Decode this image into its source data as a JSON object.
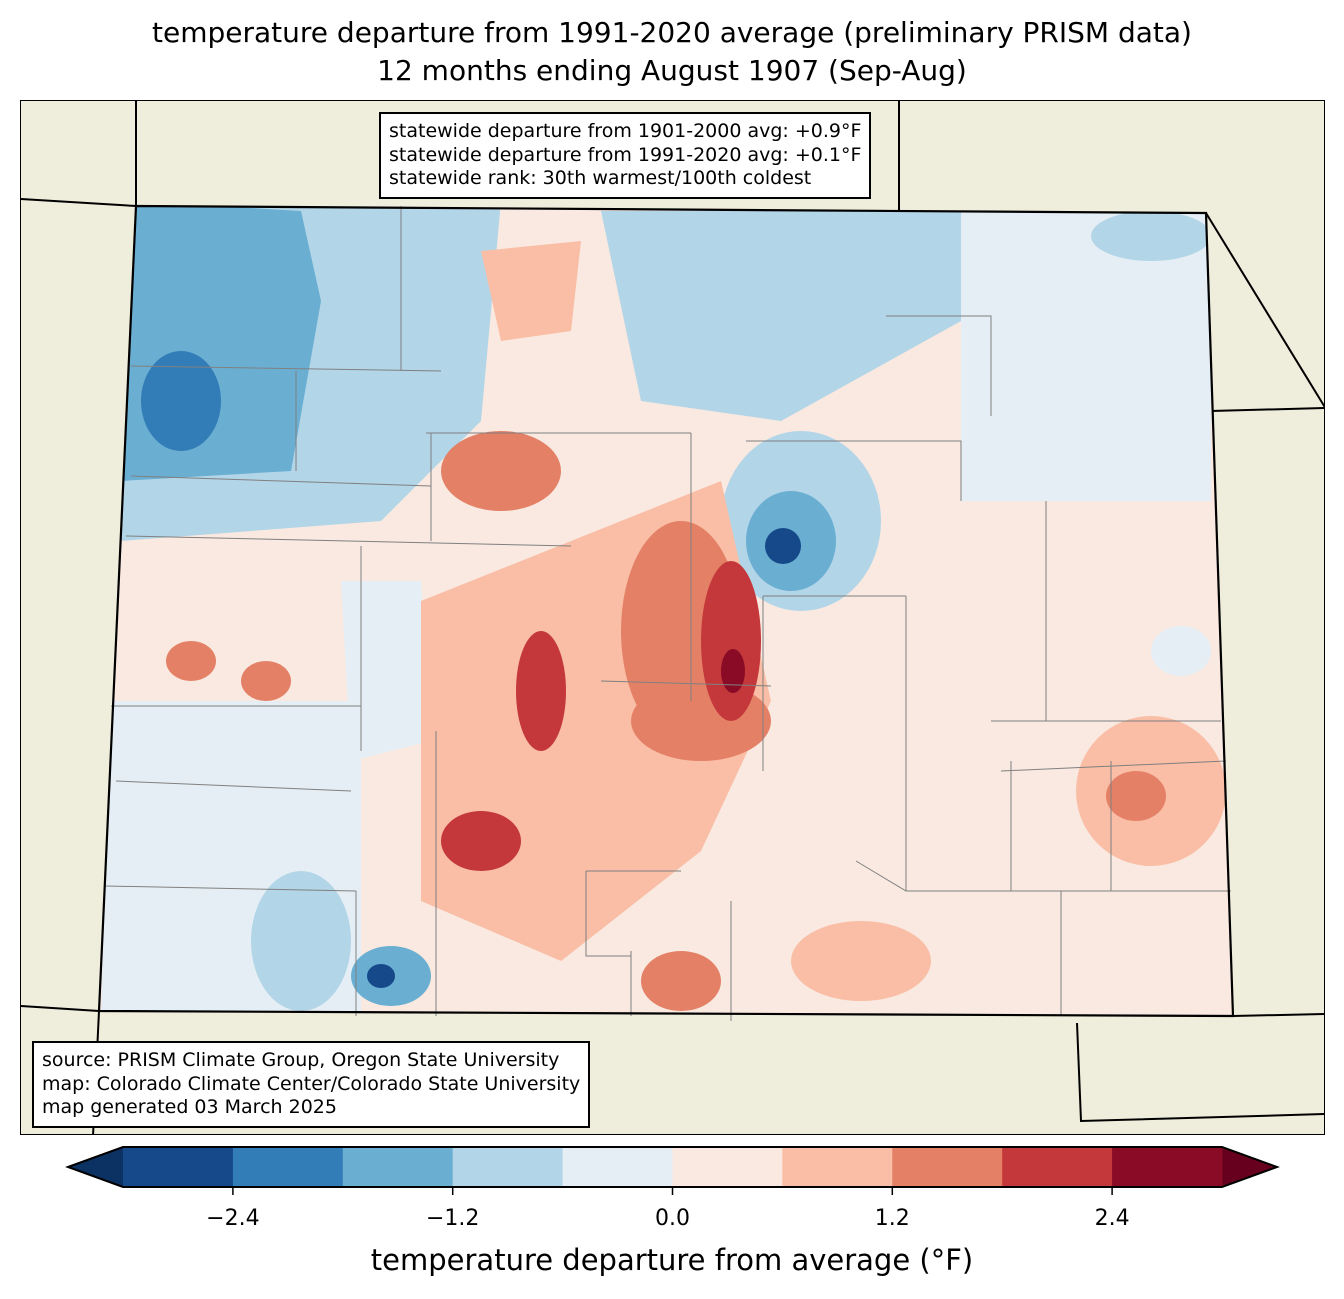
{
  "title": {
    "line1": "temperature departure from 1991-2020 average (preliminary PRISM data)",
    "line2": "12 months ending August 1907 (Sep-Aug)"
  },
  "stats_box": {
    "line1": "statewide departure from 1901-2000 avg: +0.9°F",
    "line2": "statewide departure from 1991-2020 avg: +0.1°F",
    "line3": "statewide rank: 30th warmest/100th coldest"
  },
  "source_box": {
    "line1": "source: PRISM Climate Group, Oregon State University",
    "line2": "map: Colorado Climate Center/Colorado State University",
    "line3": "map generated 03 March 2025"
  },
  "colorbar": {
    "label": "temperature departure from average (°F)",
    "levels": [
      -3.0,
      -2.4,
      -1.8,
      -1.2,
      -0.6,
      0.0,
      0.6,
      1.2,
      1.8,
      2.4,
      3.0
    ],
    "colors": [
      "#15498a",
      "#327db7",
      "#6aaed2",
      "#b2d5e8",
      "#e5eef4",
      "#f9e9e0",
      "#f9bea5",
      "#e48066",
      "#c4383b",
      "#8a0b25"
    ],
    "under_color": "#0b3263",
    "over_color": "#67001f",
    "ticks": [
      "−2.4",
      "−1.2",
      "0.0",
      "1.2",
      "2.4"
    ],
    "tick_values": [
      -2.4,
      -1.2,
      0.0,
      1.2,
      2.4
    ]
  }
}
